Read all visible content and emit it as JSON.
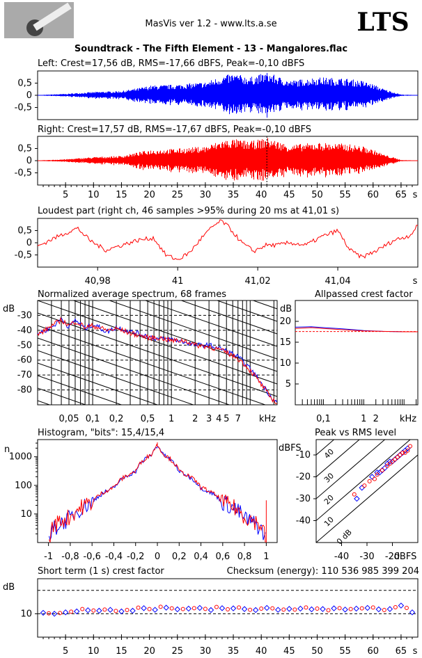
{
  "header": {
    "app_title": "MasVis ver 1.2 - www.lts.a.se",
    "logo_text": "LTS",
    "file_title": "Soundtrack - The Fifth Element - 13 - Mangalores.flac"
  },
  "colors": {
    "left": "#0000ff",
    "right": "#ff0000",
    "bg": "#ffffff"
  },
  "chart_data": [
    {
      "type": "line",
      "title": "Left: Crest=17,56 dB, RMS=-17,66 dBFS, Peak=-0,10 dBFS",
      "yticks": [
        "0,5",
        "0",
        "-0,5"
      ],
      "ylim": [
        -1,
        1
      ],
      "xlim": [
        0,
        68
      ],
      "series": [
        {
          "color": "#0000ff",
          "envelope_x": [
            0,
            5,
            10,
            15,
            18,
            20,
            25,
            30,
            33,
            35,
            38,
            41,
            45,
            50,
            55,
            58,
            60,
            62,
            65,
            68
          ],
          "envelope_y": [
            0.01,
            0.06,
            0.14,
            0.18,
            0.3,
            0.4,
            0.45,
            0.55,
            0.8,
            0.9,
            0.75,
            0.95,
            0.6,
            0.75,
            0.7,
            0.6,
            0.45,
            0.25,
            0.03,
            0.01
          ]
        }
      ]
    },
    {
      "type": "line",
      "title": "Right: Crest=17,57 dB, RMS=-17,67 dBFS, Peak=-0,10 dBFS",
      "yticks": [
        "0,5",
        "0",
        "-0,5"
      ],
      "ylim": [
        -1,
        1
      ],
      "xlim": [
        0,
        68
      ],
      "xticks": [
        "5",
        "10",
        "15",
        "20",
        "25",
        "30",
        "35",
        "40",
        "45",
        "50",
        "55",
        "60",
        "65",
        "s"
      ],
      "marker_x": 41.0,
      "series": [
        {
          "color": "#ff0000",
          "envelope_x": [
            0,
            5,
            10,
            15,
            18,
            20,
            25,
            30,
            33,
            35,
            38,
            41,
            45,
            50,
            55,
            58,
            60,
            62,
            65,
            68
          ],
          "envelope_y": [
            0.01,
            0.06,
            0.15,
            0.2,
            0.35,
            0.45,
            0.5,
            0.6,
            0.85,
            0.9,
            0.8,
            0.95,
            0.65,
            0.75,
            0.7,
            0.6,
            0.45,
            0.25,
            0.03,
            0.01
          ]
        }
      ]
    },
    {
      "type": "line",
      "title": "Loudest part (right ch, 46 samples >95% during 20 ms at 41,01 s)",
      "yticks": [
        "0,5",
        "0",
        "-0,5"
      ],
      "ylim": [
        -1,
        1
      ],
      "xlim": [
        40.965,
        41.06
      ],
      "xticks": [
        "40,98",
        "41",
        "41,02",
        "41,04",
        "s"
      ],
      "series": [
        {
          "color": "#ff0000",
          "x": [
            40.965,
            40.968,
            40.972,
            40.975,
            40.978,
            40.982,
            40.986,
            40.99,
            40.994,
            40.997,
            41.0,
            41.003,
            41.006,
            41.009,
            41.011,
            41.013,
            41.016,
            41.019,
            41.022,
            41.025,
            41.028,
            41.032,
            41.036,
            41.04,
            41.043,
            41.046,
            41.05,
            41.054,
            41.058,
            41.06
          ],
          "y": [
            -0.15,
            0.1,
            0.4,
            0.6,
            0.1,
            -0.3,
            -0.1,
            0.1,
            0.2,
            -0.5,
            -0.7,
            -0.4,
            0.2,
            0.7,
            0.9,
            0.6,
            0.0,
            -0.35,
            -0.1,
            -0.1,
            0.0,
            -0.1,
            0.25,
            0.5,
            -0.3,
            -0.6,
            -0.3,
            0.1,
            0.3,
            0.7
          ]
        }
      ]
    },
    {
      "type": "line",
      "title": "Normalized average spectrum, 68 frames",
      "ylabel": "dB",
      "yticks": [
        "-30",
        "-40",
        "-50",
        "-60",
        "-70",
        "-80"
      ],
      "ylim": [
        -90,
        -20
      ],
      "xlabel": "kHz",
      "xticks": [
        "0,05",
        "0,1",
        "0,2",
        "0,5",
        "1",
        "2",
        "3",
        "4",
        "5",
        "7",
        "kHz"
      ],
      "xlim_khz": [
        0.02,
        22
      ],
      "series": [
        {
          "color": "#0000ff",
          "x": [
            0.02,
            0.03,
            0.04,
            0.05,
            0.06,
            0.08,
            0.1,
            0.15,
            0.2,
            0.3,
            0.5,
            0.7,
            1,
            1.5,
            2,
            3,
            4,
            5,
            7,
            10,
            14,
            18,
            22
          ],
          "y": [
            -42,
            -38,
            -32,
            -38,
            -33,
            -39,
            -36,
            -41,
            -38,
            -41,
            -44,
            -46,
            -46,
            -48,
            -50,
            -50,
            -52,
            -54,
            -58,
            -66,
            -76,
            -84,
            -89
          ]
        },
        {
          "color": "#ff0000",
          "x": [
            0.02,
            0.03,
            0.04,
            0.05,
            0.06,
            0.08,
            0.1,
            0.15,
            0.2,
            0.3,
            0.5,
            0.7,
            1,
            1.5,
            2,
            3,
            4,
            5,
            7,
            10,
            14,
            18,
            22
          ],
          "y": [
            -43,
            -37,
            -33,
            -37,
            -34,
            -38,
            -37,
            -40,
            -39,
            -42,
            -45,
            -45,
            -47,
            -47,
            -50,
            -51,
            -53,
            -55,
            -59,
            -67,
            -77,
            -85,
            -89
          ]
        }
      ]
    },
    {
      "type": "line",
      "title": "Allpassed crest factor",
      "ylabel": "dB",
      "yticks": [
        "20",
        "15",
        "10",
        "5"
      ],
      "ylim": [
        0,
        25
      ],
      "xticks": [
        "0,1",
        "1",
        "2",
        "kHz"
      ],
      "reference": 17.56,
      "series": [
        {
          "color": "#0000ff",
          "x": [
            0.02,
            0.05,
            0.1,
            0.3,
            1,
            3,
            10,
            22
          ],
          "y": [
            18.6,
            18.7,
            18.5,
            18.2,
            17.8,
            17.6,
            17.5,
            17.5
          ]
        },
        {
          "color": "#ff0000",
          "x": [
            0.02,
            0.05,
            0.1,
            0.3,
            1,
            3,
            10,
            22
          ],
          "y": [
            18.3,
            18.5,
            18.3,
            18.0,
            17.7,
            17.6,
            17.5,
            17.5
          ]
        }
      ]
    },
    {
      "type": "line",
      "title": "Histogram, \"bits\": 15,4/15,4",
      "ylabel": "n",
      "yticks": [
        "1000",
        "100",
        "10"
      ],
      "xticks": [
        "-1",
        "-0,8",
        "-0,6",
        "-0,4",
        "-0,2",
        "0",
        "0,2",
        "0,4",
        "0,6",
        "0,8",
        "1"
      ],
      "xlim": [
        -1.1,
        1.1
      ],
      "series": [
        {
          "color": "#0000ff",
          "x": [
            -1.0,
            -0.95,
            -0.8,
            -0.6,
            -0.4,
            -0.2,
            -0.05,
            0,
            0.05,
            0.2,
            0.4,
            0.6,
            0.8,
            0.95,
            1.0
          ],
          "y": [
            1,
            3,
            7,
            25,
            80,
            300,
            1200,
            2500,
            1200,
            300,
            80,
            25,
            7,
            3,
            1
          ]
        },
        {
          "color": "#ff0000",
          "x": [
            -1.0,
            -0.95,
            -0.8,
            -0.6,
            -0.4,
            -0.2,
            -0.05,
            0,
            0.05,
            0.2,
            0.4,
            0.6,
            0.8,
            0.95,
            1.0
          ],
          "y": [
            1,
            4,
            8,
            26,
            85,
            310,
            1250,
            2600,
            1250,
            310,
            85,
            26,
            8,
            4,
            1
          ]
        }
      ]
    },
    {
      "type": "scatter",
      "title": "Peak vs RMS level",
      "ylabel": "dBFS",
      "xlabel": "dBFS",
      "yticks": [
        "-10",
        "-20",
        "-30",
        "-40"
      ],
      "xticks": [
        "-40",
        "-30",
        "-20",
        "dBFS"
      ],
      "xlim": [
        -50,
        -10
      ],
      "ylim": [
        -50,
        -3
      ],
      "diagonal_labels": [
        "40",
        "30",
        "20",
        "10",
        "0 dB"
      ],
      "series": [
        {
          "color": "#0000ff",
          "rms": [
            -34,
            -32,
            -28,
            -26,
            -25,
            -24,
            -23,
            -22,
            -21,
            -20,
            -19,
            -18,
            -17,
            -16,
            -15,
            -14
          ],
          "peak": [
            -30,
            -25,
            -20,
            -18,
            -18,
            -17,
            -16,
            -14,
            -13,
            -13,
            -12,
            -11,
            -10,
            -9,
            -8,
            -7
          ]
        },
        {
          "color": "#ff0000",
          "rms": [
            -35,
            -31,
            -29,
            -27,
            -26,
            -24,
            -22,
            -21,
            -20,
            -19,
            -18,
            -17,
            -16,
            -15,
            -14,
            -13
          ],
          "peak": [
            -28,
            -24,
            -22,
            -21,
            -19,
            -17,
            -15,
            -14,
            -13,
            -12,
            -11,
            -10,
            -9,
            -9,
            -8,
            -6
          ]
        }
      ]
    },
    {
      "type": "scatter",
      "title": "Short term (1 s) crest factor",
      "annotation": "Checksum (energy):  110 536 985 399 204",
      "ylabel": "dB",
      "yticks": [
        "10"
      ],
      "dashed_levels": [
        10,
        20
      ],
      "ylim": [
        0,
        25
      ],
      "xlim": [
        0,
        68
      ],
      "xticks": [
        "5",
        "10",
        "15",
        "20",
        "25",
        "30",
        "35",
        "40",
        "45",
        "50",
        "55",
        "60",
        "65",
        "s"
      ],
      "series": [
        {
          "color": "#0000ff",
          "x": [
            1,
            3,
            5,
            7,
            9,
            11,
            13,
            15,
            17,
            19,
            21,
            23,
            25,
            27,
            29,
            31,
            33,
            35,
            37,
            39,
            41,
            43,
            45,
            47,
            49,
            51,
            53,
            55,
            57,
            59,
            61,
            63,
            65,
            67
          ],
          "y": [
            10.4,
            10.0,
            10.6,
            11.0,
            11.5,
            11.3,
            11.7,
            11.0,
            11.3,
            12.4,
            11.7,
            12.6,
            11.9,
            12.2,
            12.5,
            11.6,
            12.4,
            12.3,
            12.0,
            11.6,
            12.5,
            11.7,
            12.1,
            12.2,
            11.9,
            12.0,
            12.3,
            11.8,
            12.2,
            12.5,
            11.9,
            12.0,
            13.5,
            10.6
          ]
        },
        {
          "color": "#ff0000",
          "x": [
            2,
            4,
            6,
            8,
            10,
            12,
            14,
            16,
            18,
            20,
            22,
            24,
            26,
            28,
            30,
            32,
            34,
            36,
            38,
            40,
            42,
            44,
            46,
            48,
            50,
            52,
            54,
            56,
            58,
            60,
            62,
            64,
            66
          ],
          "y": [
            10.2,
            10.3,
            10.9,
            12.0,
            11.4,
            11.8,
            11.2,
            11.6,
            12.6,
            12.0,
            13.0,
            12.3,
            12.0,
            12.4,
            12.1,
            12.9,
            11.9,
            12.7,
            11.7,
            12.2,
            12.3,
            11.8,
            11.8,
            12.7,
            12.2,
            11.5,
            12.4,
            12.0,
            12.3,
            12.7,
            11.6,
            12.8,
            12.5
          ]
        }
      ]
    }
  ]
}
